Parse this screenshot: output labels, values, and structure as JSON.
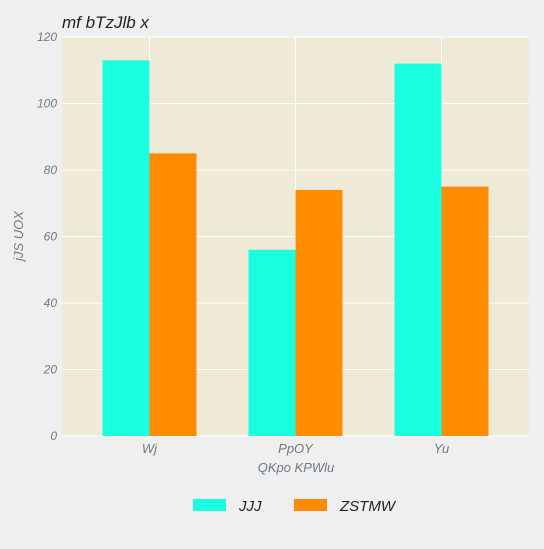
{
  "chart_data": {
    "type": "bar",
    "title": "mf bTzJlb x",
    "xlabel": "QKpo KPWlu",
    "ylabel": "jJS UOX",
    "categories": [
      "Wj",
      "PpOY",
      "Yu"
    ],
    "series": [
      {
        "name": "JJJ",
        "color": "#1affe0",
        "values": [
          113,
          56,
          112
        ]
      },
      {
        "name": "ZSTMW",
        "color": "#ff8c00",
        "values": [
          85,
          74,
          75
        ]
      }
    ],
    "ylim": [
      0,
      120
    ],
    "yticks": [
      0,
      20,
      40,
      60,
      80,
      100,
      120
    ],
    "grid": true,
    "legend_position": "bottom-center",
    "colors": {
      "plot_background": "#efe9d8",
      "figure_background": "#efefef",
      "grid": "#ffffff",
      "tick_text": "#6c7a86",
      "title_text": "#222222"
    }
  }
}
